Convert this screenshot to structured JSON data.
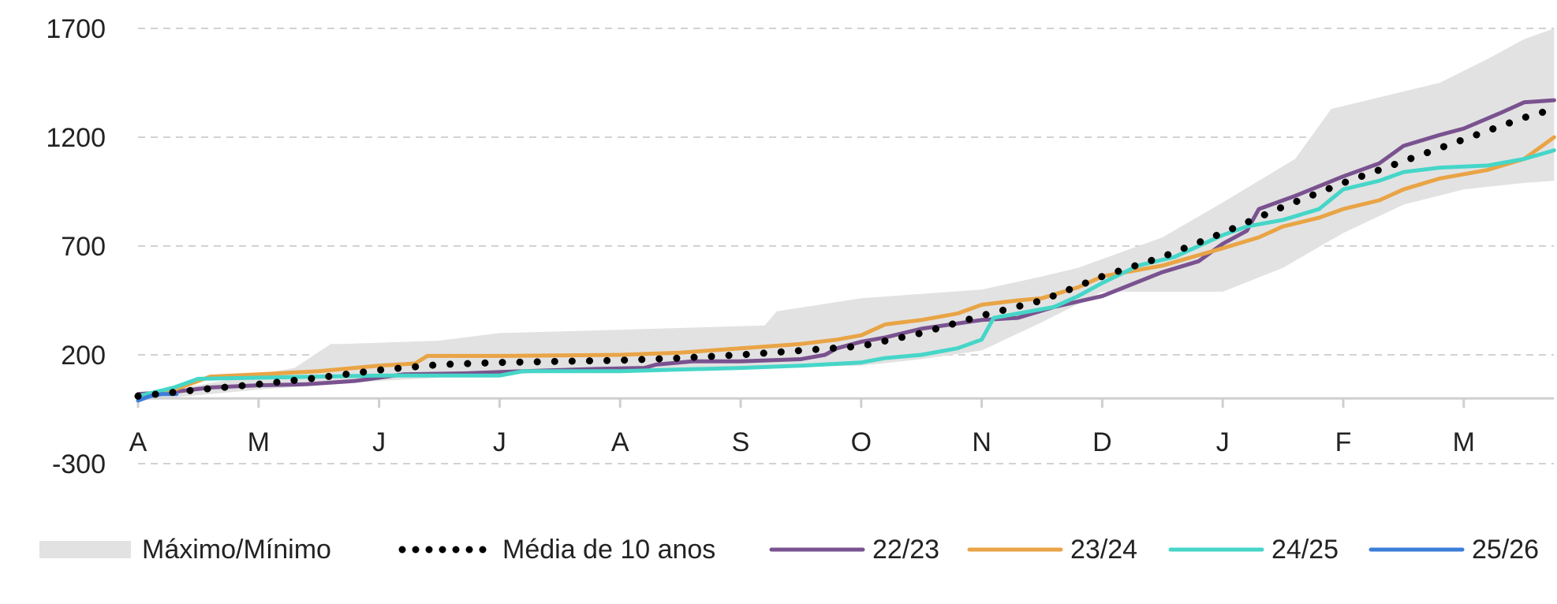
{
  "chart_data": {
    "type": "line",
    "ylim": [
      -300,
      1700
    ],
    "yticks": [
      1700,
      1200,
      700,
      200,
      -300
    ],
    "x_month_labels": [
      "A",
      "M",
      "J",
      "J",
      "A",
      "S",
      "O",
      "N",
      "D",
      "J",
      "F",
      "M"
    ],
    "grid": "horizontal dashed",
    "legend": "bottom",
    "band": {
      "name": "Máximo/Mínimo",
      "color": "#e2e2e2",
      "upper": [
        [
          0,
          15
        ],
        [
          0.5,
          60
        ],
        [
          1.3,
          140
        ],
        [
          1.6,
          250
        ],
        [
          1.7,
          250
        ],
        [
          2.5,
          265
        ],
        [
          3.0,
          300
        ],
        [
          4.0,
          315
        ],
        [
          5.2,
          335
        ],
        [
          5.3,
          400
        ],
        [
          6.0,
          460
        ],
        [
          7.0,
          500
        ],
        [
          7.5,
          560
        ],
        [
          7.8,
          600
        ],
        [
          8.5,
          740
        ],
        [
          9.0,
          900
        ],
        [
          9.6,
          1100
        ],
        [
          9.9,
          1330
        ],
        [
          10.2,
          1370
        ],
        [
          10.8,
          1450
        ],
        [
          11.2,
          1560
        ],
        [
          11.5,
          1650
        ],
        [
          11.75,
          1700
        ]
      ],
      "lower": [
        [
          0,
          -10
        ],
        [
          1.0,
          40
        ],
        [
          2.0,
          80
        ],
        [
          3.0,
          110
        ],
        [
          4.0,
          130
        ],
        [
          5.0,
          140
        ],
        [
          6.0,
          150
        ],
        [
          6.5,
          180
        ],
        [
          7.0,
          220
        ],
        [
          7.5,
          350
        ],
        [
          8.0,
          490
        ],
        [
          9.0,
          490
        ],
        [
          9.5,
          600
        ],
        [
          10.0,
          760
        ],
        [
          10.5,
          890
        ],
        [
          11.0,
          960
        ],
        [
          11.5,
          990
        ],
        [
          11.75,
          1000
        ]
      ]
    },
    "series": [
      {
        "name": "Média de 10 anos",
        "color": "#000000",
        "style": "dotted",
        "points": [
          [
            0,
            10
          ],
          [
            0.5,
            40
          ],
          [
            1.0,
            65
          ],
          [
            1.5,
            95
          ],
          [
            2.0,
            130
          ],
          [
            2.5,
            155
          ],
          [
            3.0,
            165
          ],
          [
            3.5,
            170
          ],
          [
            4.0,
            175
          ],
          [
            4.5,
            185
          ],
          [
            5.0,
            200
          ],
          [
            5.5,
            220
          ],
          [
            6.0,
            240
          ],
          [
            6.5,
            300
          ],
          [
            7.0,
            380
          ],
          [
            7.5,
            450
          ],
          [
            8.0,
            560
          ],
          [
            8.5,
            650
          ],
          [
            9.0,
            760
          ],
          [
            9.5,
            880
          ],
          [
            10.0,
            990
          ],
          [
            10.5,
            1090
          ],
          [
            11.0,
            1190
          ],
          [
            11.5,
            1290
          ],
          [
            11.75,
            1330
          ]
        ]
      },
      {
        "name": "22/23",
        "color": "#7a528f",
        "style": "solid",
        "points": [
          [
            0,
            20
          ],
          [
            0.3,
            30
          ],
          [
            0.6,
            50
          ],
          [
            1.0,
            60
          ],
          [
            1.4,
            65
          ],
          [
            1.8,
            80
          ],
          [
            2.2,
            110
          ],
          [
            2.7,
            115
          ],
          [
            3.2,
            125
          ],
          [
            3.8,
            135
          ],
          [
            4.2,
            140
          ],
          [
            4.3,
            155
          ],
          [
            4.6,
            170
          ],
          [
            5.0,
            170
          ],
          [
            5.5,
            180
          ],
          [
            5.7,
            200
          ],
          [
            5.8,
            230
          ],
          [
            6.0,
            260
          ],
          [
            6.2,
            280
          ],
          [
            6.5,
            320
          ],
          [
            7.0,
            360
          ],
          [
            7.3,
            370
          ],
          [
            7.6,
            420
          ],
          [
            8.0,
            470
          ],
          [
            8.5,
            580
          ],
          [
            8.8,
            630
          ],
          [
            9.0,
            710
          ],
          [
            9.2,
            770
          ],
          [
            9.3,
            870
          ],
          [
            9.6,
            930
          ],
          [
            10.0,
            1020
          ],
          [
            10.3,
            1080
          ],
          [
            10.5,
            1160
          ],
          [
            10.8,
            1210
          ],
          [
            11.0,
            1240
          ],
          [
            11.3,
            1310
          ],
          [
            11.5,
            1360
          ],
          [
            11.75,
            1370
          ]
        ]
      },
      {
        "name": "23/24",
        "color": "#e9a445",
        "style": "solid",
        "points": [
          [
            0,
            10
          ],
          [
            0.3,
            40
          ],
          [
            0.6,
            100
          ],
          [
            1.0,
            110
          ],
          [
            1.5,
            125
          ],
          [
            2.0,
            150
          ],
          [
            2.3,
            160
          ],
          [
            2.4,
            195
          ],
          [
            3.0,
            195
          ],
          [
            4.0,
            200
          ],
          [
            4.5,
            210
          ],
          [
            5.0,
            230
          ],
          [
            5.5,
            250
          ],
          [
            5.8,
            270
          ],
          [
            6.0,
            290
          ],
          [
            6.2,
            340
          ],
          [
            6.5,
            360
          ],
          [
            6.8,
            390
          ],
          [
            7.0,
            430
          ],
          [
            7.3,
            450
          ],
          [
            7.5,
            460
          ],
          [
            7.8,
            510
          ],
          [
            8.0,
            560
          ],
          [
            8.5,
            610
          ],
          [
            9.0,
            690
          ],
          [
            9.3,
            740
          ],
          [
            9.5,
            790
          ],
          [
            9.8,
            830
          ],
          [
            10.0,
            870
          ],
          [
            10.3,
            910
          ],
          [
            10.5,
            960
          ],
          [
            10.8,
            1010
          ],
          [
            11.2,
            1050
          ],
          [
            11.5,
            1100
          ],
          [
            11.75,
            1200
          ]
        ]
      },
      {
        "name": "24/25",
        "color": "#45d6c8",
        "style": "solid",
        "points": [
          [
            0,
            10
          ],
          [
            0.3,
            50
          ],
          [
            0.5,
            90
          ],
          [
            1.0,
            95
          ],
          [
            1.5,
            100
          ],
          [
            2.0,
            105
          ],
          [
            3.0,
            105
          ],
          [
            3.2,
            125
          ],
          [
            4.0,
            125
          ],
          [
            5.0,
            140
          ],
          [
            5.5,
            150
          ],
          [
            6.0,
            165
          ],
          [
            6.2,
            185
          ],
          [
            6.5,
            200
          ],
          [
            6.8,
            230
          ],
          [
            7.0,
            270
          ],
          [
            7.1,
            370
          ],
          [
            7.3,
            390
          ],
          [
            7.6,
            420
          ],
          [
            7.8,
            470
          ],
          [
            8.0,
            530
          ],
          [
            8.3,
            610
          ],
          [
            8.6,
            650
          ],
          [
            8.8,
            700
          ],
          [
            9.0,
            750
          ],
          [
            9.2,
            790
          ],
          [
            9.5,
            820
          ],
          [
            9.8,
            870
          ],
          [
            10.0,
            960
          ],
          [
            10.3,
            1000
          ],
          [
            10.5,
            1040
          ],
          [
            10.8,
            1060
          ],
          [
            11.2,
            1070
          ],
          [
            11.5,
            1100
          ],
          [
            11.75,
            1140
          ]
        ]
      },
      {
        "name": "25/26",
        "color": "#3c7dd9",
        "style": "solid",
        "points": [
          [
            0,
            -10
          ],
          [
            0.1,
            10
          ],
          [
            0.2,
            20
          ],
          [
            0.32,
            20
          ]
        ]
      }
    ]
  }
}
